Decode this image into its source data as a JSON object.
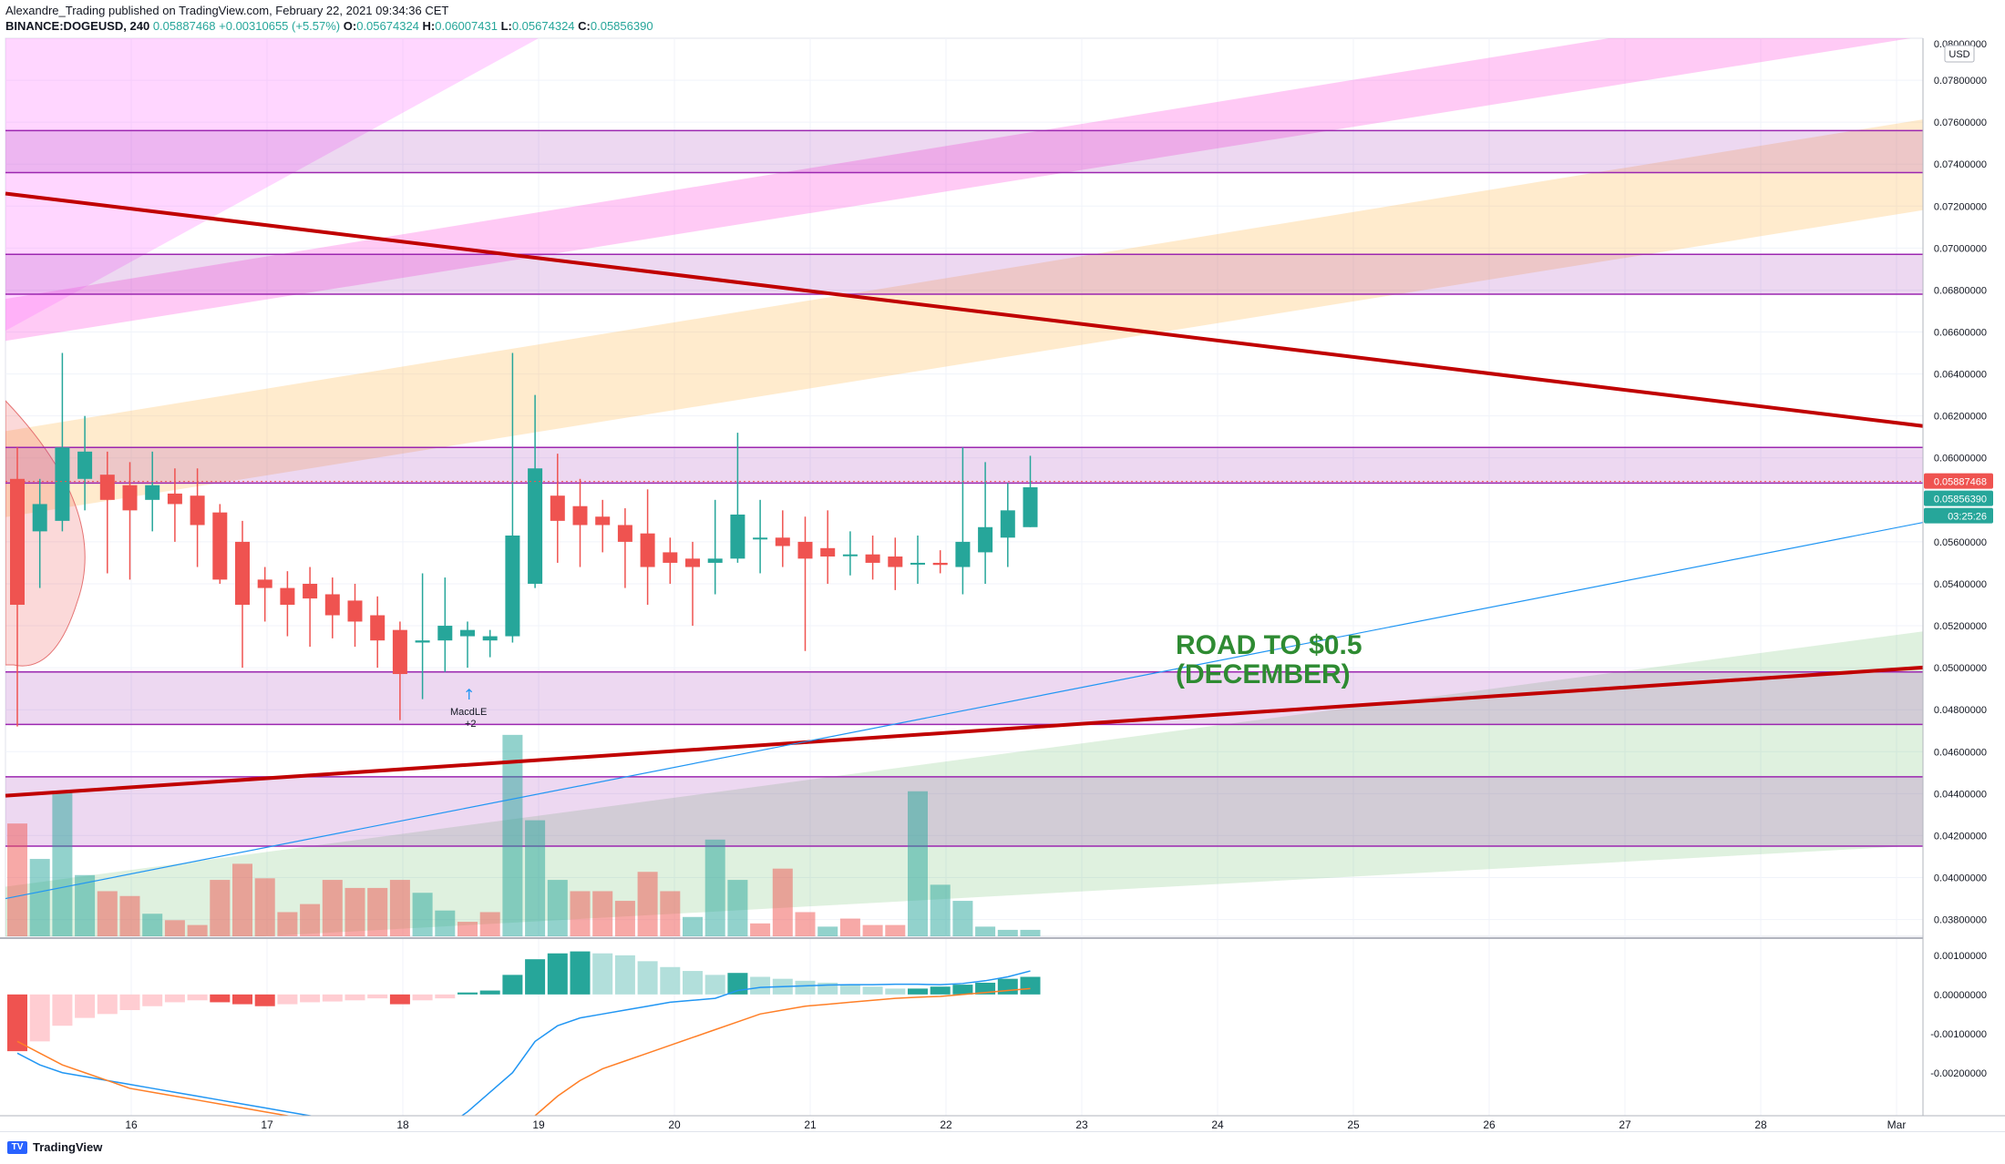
{
  "header": {
    "line1": "Alexandre_Trading published on TradingView.com, February 22, 2021 09:34:36 CET",
    "symbol": "BINANCE:DOGEUSD, 240",
    "last": "0.05887468",
    "change": "+0.00310655 (+5.57%)",
    "open_label": "O:",
    "open": "0.05674324",
    "high_label": "H:",
    "high": "0.06007431",
    "low_label": "L:",
    "low": "0.05674324",
    "close_label": "C:",
    "close": "0.05856390"
  },
  "footer": {
    "brand": "TradingView"
  },
  "colors": {
    "up": "#26a69a",
    "down": "#ef5350",
    "trend": "#c00000",
    "zone": "#9c27b0",
    "annotation": "#2e8b32",
    "macd_line": "#2196f3",
    "signal_line": "#ff7f27"
  },
  "chart_data": {
    "type": "candlestick",
    "symbol": "BINANCE:DOGEUSD",
    "interval": "240",
    "currency": "USD",
    "x_ticks": [
      "16",
      "17",
      "18",
      "19",
      "20",
      "21",
      "22",
      "23",
      "24",
      "25",
      "26",
      "27",
      "28",
      "Mar"
    ],
    "y_ticks": [
      "0.07800000",
      "0.07600000",
      "0.07400000",
      "0.07200000",
      "0.07000000",
      "0.06800000",
      "0.06600000",
      "0.06400000",
      "0.06200000",
      "0.06000000",
      "0.05600000",
      "0.05400000",
      "0.05200000",
      "0.05000000",
      "0.04800000",
      "0.04600000",
      "0.04400000",
      "0.04200000",
      "0.04000000",
      "0.03800000"
    ],
    "y_top_tick": "0.08000000",
    "ylim": [
      0.0372,
      0.08
    ],
    "price_labels": {
      "last": "0.05887468",
      "close": "0.05856390",
      "countdown": "03:25:26"
    },
    "candles": [
      {
        "o": 0.059,
        "h": 0.0605,
        "l": 0.0472,
        "c": 0.053
      },
      {
        "o": 0.0565,
        "h": 0.059,
        "l": 0.0538,
        "c": 0.0578
      },
      {
        "o": 0.057,
        "h": 0.065,
        "l": 0.0565,
        "c": 0.0605
      },
      {
        "o": 0.059,
        "h": 0.062,
        "l": 0.0575,
        "c": 0.0603
      },
      {
        "o": 0.0592,
        "h": 0.0603,
        "l": 0.0545,
        "c": 0.058
      },
      {
        "o": 0.0587,
        "h": 0.0598,
        "l": 0.0542,
        "c": 0.0575
      },
      {
        "o": 0.058,
        "h": 0.0603,
        "l": 0.0565,
        "c": 0.0587
      },
      {
        "o": 0.0583,
        "h": 0.0595,
        "l": 0.056,
        "c": 0.0578
      },
      {
        "o": 0.0582,
        "h": 0.0595,
        "l": 0.0548,
        "c": 0.0568
      },
      {
        "o": 0.0574,
        "h": 0.0578,
        "l": 0.054,
        "c": 0.0542
      },
      {
        "o": 0.056,
        "h": 0.057,
        "l": 0.05,
        "c": 0.053
      },
      {
        "o": 0.0542,
        "h": 0.0548,
        "l": 0.0522,
        "c": 0.0538
      },
      {
        "o": 0.0538,
        "h": 0.0546,
        "l": 0.0515,
        "c": 0.053
      },
      {
        "o": 0.054,
        "h": 0.0548,
        "l": 0.051,
        "c": 0.0533
      },
      {
        "o": 0.0535,
        "h": 0.0543,
        "l": 0.0514,
        "c": 0.0525
      },
      {
        "o": 0.0532,
        "h": 0.054,
        "l": 0.051,
        "c": 0.0522
      },
      {
        "o": 0.0525,
        "h": 0.0534,
        "l": 0.05,
        "c": 0.0513
      },
      {
        "o": 0.0518,
        "h": 0.0522,
        "l": 0.0475,
        "c": 0.0497
      },
      {
        "o": 0.0512,
        "h": 0.0545,
        "l": 0.0485,
        "c": 0.0513
      },
      {
        "o": 0.0513,
        "h": 0.0543,
        "l": 0.0498,
        "c": 0.052
      },
      {
        "o": 0.0515,
        "h": 0.0522,
        "l": 0.05,
        "c": 0.0518
      },
      {
        "o": 0.0513,
        "h": 0.0518,
        "l": 0.0505,
        "c": 0.0515
      },
      {
        "o": 0.0515,
        "h": 0.065,
        "l": 0.0512,
        "c": 0.0563
      },
      {
        "o": 0.054,
        "h": 0.063,
        "l": 0.0538,
        "c": 0.0595
      },
      {
        "o": 0.0582,
        "h": 0.0602,
        "l": 0.055,
        "c": 0.057
      },
      {
        "o": 0.0577,
        "h": 0.059,
        "l": 0.0548,
        "c": 0.0568
      },
      {
        "o": 0.0572,
        "h": 0.058,
        "l": 0.0555,
        "c": 0.0568
      },
      {
        "o": 0.0568,
        "h": 0.0576,
        "l": 0.0538,
        "c": 0.056
      },
      {
        "o": 0.0564,
        "h": 0.0585,
        "l": 0.053,
        "c": 0.0548
      },
      {
        "o": 0.0555,
        "h": 0.0562,
        "l": 0.054,
        "c": 0.055
      },
      {
        "o": 0.0552,
        "h": 0.056,
        "l": 0.052,
        "c": 0.0548
      },
      {
        "o": 0.055,
        "h": 0.058,
        "l": 0.0535,
        "c": 0.0552
      },
      {
        "o": 0.0552,
        "h": 0.0612,
        "l": 0.055,
        "c": 0.0573
      },
      {
        "o": 0.0562,
        "h": 0.058,
        "l": 0.0545,
        "c": 0.0562
      },
      {
        "o": 0.0562,
        "h": 0.0575,
        "l": 0.0548,
        "c": 0.0558
      },
      {
        "o": 0.056,
        "h": 0.0572,
        "l": 0.0508,
        "c": 0.0552
      },
      {
        "o": 0.0557,
        "h": 0.0575,
        "l": 0.054,
        "c": 0.0553
      },
      {
        "o": 0.0554,
        "h": 0.0565,
        "l": 0.0544,
        "c": 0.0554
      },
      {
        "o": 0.0554,
        "h": 0.0563,
        "l": 0.0542,
        "c": 0.055
      },
      {
        "o": 0.0553,
        "h": 0.0562,
        "l": 0.0537,
        "c": 0.0548
      },
      {
        "o": 0.055,
        "h": 0.0563,
        "l": 0.054,
        "c": 0.055
      },
      {
        "o": 0.055,
        "h": 0.0556,
        "l": 0.0545,
        "c": 0.0549
      },
      {
        "o": 0.0548,
        "h": 0.0605,
        "l": 0.0535,
        "c": 0.056
      },
      {
        "o": 0.0555,
        "h": 0.0598,
        "l": 0.054,
        "c": 0.0567
      },
      {
        "o": 0.0562,
        "h": 0.0588,
        "l": 0.0548,
        "c": 0.0575
      },
      {
        "o": 0.0567,
        "h": 0.0601,
        "l": 0.0567,
        "c": 0.0586
      }
    ],
    "volume": [
      0.7,
      0.48,
      0.9,
      0.38,
      0.28,
      0.25,
      0.14,
      0.1,
      0.07,
      0.35,
      0.45,
      0.36,
      0.15,
      0.2,
      0.35,
      0.3,
      0.3,
      0.35,
      0.27,
      0.16,
      0.09,
      0.15,
      1.25,
      0.72,
      0.35,
      0.28,
      0.28,
      0.22,
      0.4,
      0.28,
      0.12,
      0.6,
      0.35,
      0.08,
      0.42,
      0.15,
      0.06,
      0.11,
      0.07,
      0.07,
      0.9,
      0.32,
      0.22,
      0.06,
      0.04,
      0.04
    ],
    "volume_up": [
      false,
      true,
      true,
      true,
      false,
      false,
      true,
      false,
      false,
      false,
      false,
      false,
      false,
      false,
      false,
      false,
      false,
      false,
      true,
      true,
      false,
      false,
      true,
      true,
      true,
      false,
      false,
      false,
      false,
      false,
      true,
      true,
      true,
      false,
      false,
      false,
      true,
      false,
      false,
      false,
      true,
      true,
      true,
      true,
      true,
      true
    ],
    "macd_hist": [
      -0.00145,
      -0.0012,
      -0.0008,
      -0.0006,
      -0.0005,
      -0.0004,
      -0.0003,
      -0.0002,
      -0.00015,
      -0.0002,
      -0.00025,
      -0.0003,
      -0.00025,
      -0.0002,
      -0.00018,
      -0.00015,
      -0.0001,
      -0.00025,
      -0.00015,
      -0.0001,
      5e-05,
      0.0001,
      0.0005,
      0.0009,
      0.00105,
      0.0011,
      0.00105,
      0.001,
      0.00085,
      0.0007,
      0.0006,
      0.0005,
      0.00055,
      0.00045,
      0.0004,
      0.00035,
      0.0003,
      0.00025,
      0.0002,
      0.00015,
      0.00015,
      0.0002,
      0.00025,
      0.0003,
      0.0004,
      0.00045
    ],
    "macd_hist_rising": [
      false,
      true,
      true,
      true,
      true,
      true,
      true,
      true,
      true,
      false,
      false,
      false,
      true,
      true,
      true,
      true,
      true,
      false,
      true,
      true,
      true,
      true,
      true,
      true,
      true,
      true,
      false,
      false,
      false,
      false,
      false,
      false,
      true,
      false,
      false,
      false,
      false,
      false,
      false,
      false,
      true,
      true,
      true,
      true,
      true,
      true
    ],
    "macd_line": [
      -0.0015,
      -0.0018,
      -0.002,
      -0.0021,
      -0.0022,
      -0.0023,
      -0.0024,
      -0.0025,
      -0.0026,
      -0.0027,
      -0.0028,
      -0.0029,
      -0.003,
      -0.0031,
      -0.0032,
      -0.0033,
      -0.0034,
      -0.0035,
      -0.0035,
      -0.0034,
      -0.003,
      -0.0025,
      -0.002,
      -0.0012,
      -0.0008,
      -0.0006,
      -0.0005,
      -0.0004,
      -0.0003,
      -0.0002,
      -0.00015,
      -0.0001,
      0.0001,
      0.00018,
      0.0002,
      0.00022,
      0.00024,
      0.00025,
      0.00025,
      0.00026,
      0.00026,
      0.00025,
      0.00028,
      0.00035,
      0.00045,
      0.0006
    ],
    "signal_line": [
      -0.0012,
      -0.0015,
      -0.0018,
      -0.002,
      -0.0022,
      -0.0024,
      -0.0025,
      -0.0026,
      -0.0027,
      -0.0028,
      -0.0029,
      -0.003,
      -0.0031,
      -0.0032,
      -0.0033,
      -0.0034,
      -0.0035,
      -0.0036,
      -0.0037,
      -0.0038,
      -0.0038,
      -0.0037,
      -0.0035,
      -0.0031,
      -0.0026,
      -0.0022,
      -0.0019,
      -0.0017,
      -0.0015,
      -0.0013,
      -0.0011,
      -0.0009,
      -0.0007,
      -0.0005,
      -0.0004,
      -0.0003,
      -0.00025,
      -0.0002,
      -0.00015,
      -0.0001,
      -7e-05,
      -5e-05,
      0.0,
      5e-05,
      0.0001,
      0.00015
    ],
    "macd_y_ticks": [
      "0.00100000",
      "0.00000000",
      "-0.00100000",
      "-0.00200000"
    ],
    "macd_ylim": [
      -0.0031,
      0.0013
    ],
    "annotation": {
      "line1": "ROAD TO $0.5",
      "line2": "(DECEMBER)"
    },
    "signal_marker": {
      "label": "MacdLE",
      "count": "+2"
    },
    "zones": [
      [
        0.0736,
        0.0756
      ],
      [
        0.0678,
        0.0697
      ],
      [
        0.0588,
        0.0605
      ],
      [
        0.0473,
        0.0498
      ],
      [
        0.0415,
        0.0448
      ]
    ],
    "triangle": {
      "upper": [
        [
          0.0,
          0.0726
        ],
        [
          23.65,
          0.0541
        ]
      ],
      "lower": [
        [
          0.0,
          0.0439
        ],
        [
          23.65,
          0.0541
        ]
      ]
    },
    "blue_trendline": [
      [
        0.0,
        0.039
      ],
      [
        28.2,
        0.0747
      ]
    ],
    "channel_orange": {
      "bottom": [
        [
          0.0,
          0.0571
        ],
        [
          25.0,
          0.083
        ]
      ],
      "top": [
        [
          0.0,
          0.0612
        ],
        [
          25.0,
          0.0875
        ]
      ]
    },
    "channel_pink": {
      "bottom": [
        [
          0.0,
          0.0655
        ],
        [
          25.0,
          0.0912
        ]
      ],
      "top": [
        [
          0.0,
          0.0675
        ],
        [
          25.0,
          0.0938
        ]
      ]
    },
    "channel_green": {
      "bottom": [
        [
          0.0,
          0.0365
        ],
        [
          28.2,
          0.0465
        ]
      ],
      "top": [
        [
          0.0,
          0.0395
        ],
        [
          28.2,
          0.0638
        ]
      ]
    }
  }
}
